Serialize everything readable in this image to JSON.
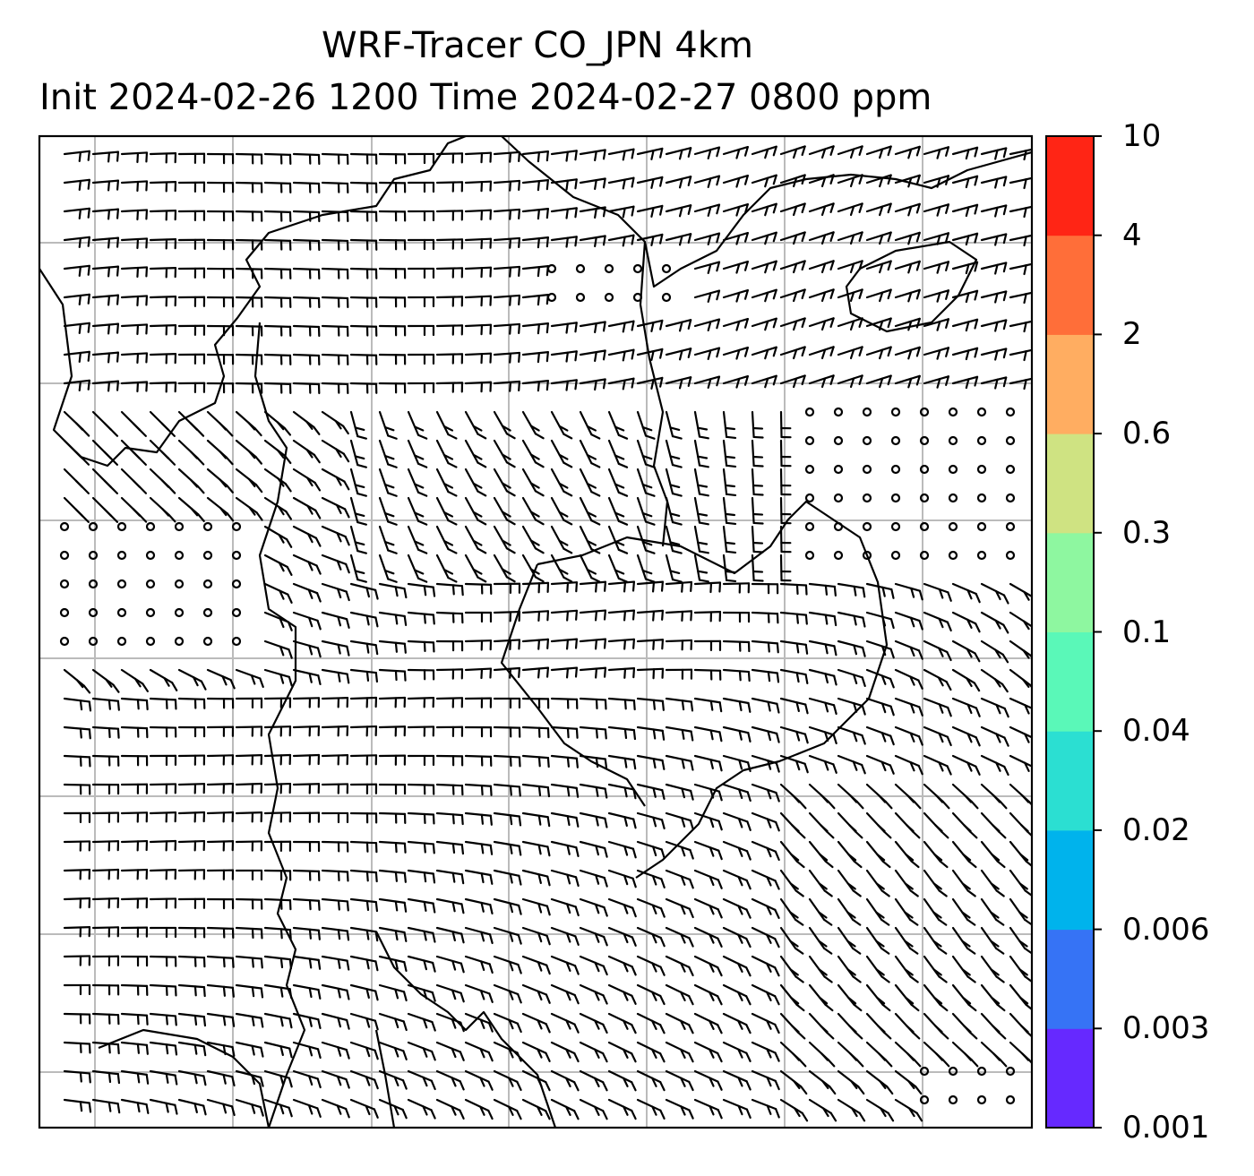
{
  "title": {
    "line1": "WRF-Tracer CO_JPN 4km",
    "line2": "Init 2024-02-26 1200 Time 2024-02-27 0800 ppm"
  },
  "colorbar": {
    "labels": [
      "0.001",
      "0.003",
      "0.006",
      "0.02",
      "0.04",
      "0.1",
      "0.3",
      "0.6",
      "2",
      "4",
      "10"
    ],
    "colors": [
      "#6629ff",
      "#3673f5",
      "#00b3ec",
      "#2bdfd2",
      "#5af8b8",
      "#8ef7a0",
      "#cfe382",
      "#ffad61",
      "#ff6e39",
      "#ff2515"
    ]
  },
  "map": {
    "gridline_color": "#bbbbbb",
    "coastline_color": "#000000",
    "barb_color": "#000000",
    "background": "#ffffff"
  }
}
